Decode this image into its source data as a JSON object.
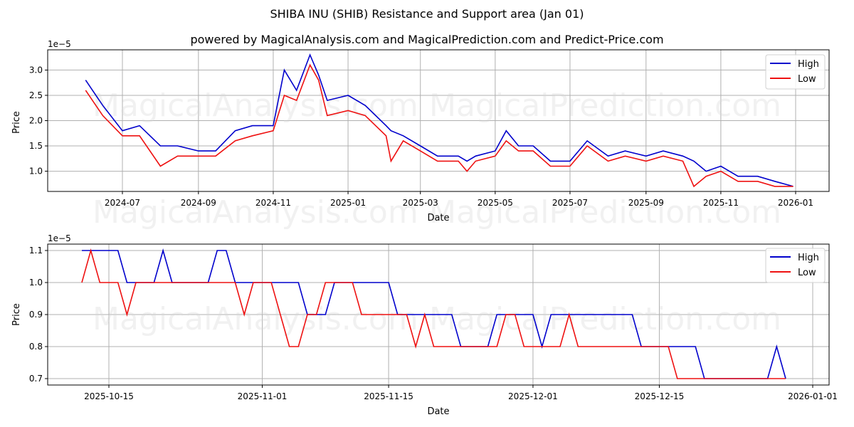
{
  "header": {
    "title": "SHIBA INU (SHIB) Resistance and Support area (Jan 01)",
    "subtitle": "powered by MagicalAnalysis.com and MagicalPrediction.com and Predict-Price.com"
  },
  "watermarks": [
    "MagicalAnalysis.com",
    "MagicalPrediction.com"
  ],
  "colors": {
    "high": "#0000cc",
    "low": "#ee1111",
    "grid": "#b0b0b0"
  },
  "chart_data": [
    {
      "type": "line",
      "title": "",
      "xlabel": "Date",
      "ylabel": "Price",
      "y_scale_label": "1e−5",
      "ylim": [
        0.6,
        3.4
      ],
      "yticks": [
        "1.0",
        "1.5",
        "2.0",
        "2.5",
        "3.0"
      ],
      "xticks": [
        "2024-07",
        "2024-09",
        "2024-11",
        "2025-01",
        "2025-03",
        "2025-05",
        "2025-07",
        "2025-09",
        "2025-11",
        "2026-01"
      ],
      "grid": true,
      "legend": {
        "position": "upper right",
        "entries": [
          "High",
          "Low"
        ]
      },
      "x": [
        "2024-06-01",
        "2024-06-15",
        "2024-07-01",
        "2024-07-15",
        "2024-08-01",
        "2024-08-15",
        "2024-09-01",
        "2024-09-15",
        "2024-10-01",
        "2024-10-15",
        "2024-11-01",
        "2024-11-10",
        "2024-11-20",
        "2024-12-01",
        "2024-12-08",
        "2024-12-15",
        "2025-01-01",
        "2025-01-15",
        "2025-02-01",
        "2025-02-05",
        "2025-02-15",
        "2025-03-01",
        "2025-03-15",
        "2025-04-01",
        "2025-04-08",
        "2025-04-15",
        "2025-05-01",
        "2025-05-10",
        "2025-05-20",
        "2025-06-01",
        "2025-06-15",
        "2025-07-01",
        "2025-07-15",
        "2025-08-01",
        "2025-08-15",
        "2025-09-01",
        "2025-09-15",
        "2025-10-01",
        "2025-10-10",
        "2025-10-20",
        "2025-11-01",
        "2025-11-15",
        "2025-12-01",
        "2025-12-15",
        "2025-12-30"
      ],
      "series": [
        {
          "name": "High",
          "values": [
            2.8,
            2.3,
            1.8,
            1.9,
            1.5,
            1.5,
            1.4,
            1.4,
            1.8,
            1.9,
            1.9,
            3.0,
            2.6,
            3.3,
            2.9,
            2.4,
            2.5,
            2.3,
            1.9,
            1.8,
            1.7,
            1.5,
            1.3,
            1.3,
            1.2,
            1.3,
            1.4,
            1.8,
            1.5,
            1.5,
            1.2,
            1.2,
            1.6,
            1.3,
            1.4,
            1.3,
            1.4,
            1.3,
            1.2,
            1.0,
            1.1,
            0.9,
            0.9,
            0.8,
            0.7
          ]
        },
        {
          "name": "Low",
          "values": [
            2.6,
            2.1,
            1.7,
            1.7,
            1.1,
            1.3,
            1.3,
            1.3,
            1.6,
            1.7,
            1.8,
            2.5,
            2.4,
            3.1,
            2.8,
            2.1,
            2.2,
            2.1,
            1.7,
            1.2,
            1.6,
            1.4,
            1.2,
            1.2,
            1.0,
            1.2,
            1.3,
            1.6,
            1.4,
            1.4,
            1.1,
            1.1,
            1.5,
            1.2,
            1.3,
            1.2,
            1.3,
            1.2,
            0.7,
            0.9,
            1.0,
            0.8,
            0.8,
            0.7,
            0.7
          ]
        }
      ]
    },
    {
      "type": "line",
      "title": "",
      "xlabel": "Date",
      "ylabel": "Price",
      "y_scale_label": "1e−5",
      "ylim": [
        0.68,
        1.12
      ],
      "yticks": [
        "0.7",
        "0.8",
        "0.9",
        "1.0",
        "1.1"
      ],
      "xticks": [
        "2025-10-15",
        "2025-11-01",
        "2025-11-15",
        "2025-12-01",
        "2025-12-15",
        "2026-01-01"
      ],
      "grid": true,
      "legend": {
        "position": "upper right",
        "entries": [
          "High",
          "Low"
        ]
      },
      "x_start": "2025-10-12",
      "x_step_days": 1,
      "series": [
        {
          "name": "High",
          "values": [
            1.1,
            1.1,
            1.1,
            1.1,
            1.1,
            1.0,
            1.0,
            1.0,
            1.0,
            1.1,
            1.0,
            1.0,
            1.0,
            1.0,
            1.0,
            1.1,
            1.1,
            1.0,
            1.0,
            1.0,
            1.0,
            1.0,
            1.0,
            1.0,
            1.0,
            0.9,
            0.9,
            0.9,
            1.0,
            1.0,
            1.0,
            1.0,
            1.0,
            1.0,
            1.0,
            0.9,
            0.9,
            0.9,
            0.9,
            0.9,
            0.9,
            0.9,
            0.8,
            0.8,
            0.8,
            0.8,
            0.9,
            0.9,
            0.9,
            0.9,
            0.9,
            0.8,
            0.9,
            0.9,
            0.9,
            0.9,
            0.9,
            0.9,
            0.9,
            0.9,
            0.9,
            0.9,
            0.8,
            0.8,
            0.8,
            0.8,
            0.8,
            0.8,
            0.8,
            0.7,
            0.7,
            0.7,
            0.7,
            0.7,
            0.7,
            0.7,
            0.7,
            0.8,
            0.7
          ]
        },
        {
          "name": "Low",
          "values": [
            1.0,
            1.1,
            1.0,
            1.0,
            1.0,
            0.9,
            1.0,
            1.0,
            1.0,
            1.0,
            1.0,
            1.0,
            1.0,
            1.0,
            1.0,
            1.0,
            1.0,
            1.0,
            0.9,
            1.0,
            1.0,
            1.0,
            0.9,
            0.8,
            0.8,
            0.9,
            0.9,
            1.0,
            1.0,
            1.0,
            1.0,
            0.9,
            0.9,
            0.9,
            0.9,
            0.9,
            0.9,
            0.8,
            0.9,
            0.8,
            0.8,
            0.8,
            0.8,
            0.8,
            0.8,
            0.8,
            0.8,
            0.9,
            0.9,
            0.8,
            0.8,
            0.8,
            0.8,
            0.8,
            0.9,
            0.8,
            0.8,
            0.8,
            0.8,
            0.8,
            0.8,
            0.8,
            0.8,
            0.8,
            0.8,
            0.8,
            0.7,
            0.7,
            0.7,
            0.7,
            0.7,
            0.7,
            0.7,
            0.7,
            0.7,
            0.7,
            0.7,
            0.7,
            0.7
          ]
        }
      ]
    }
  ]
}
